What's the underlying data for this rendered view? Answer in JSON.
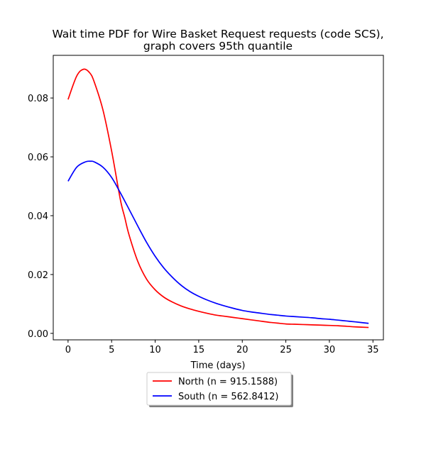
{
  "chart_data": {
    "type": "line",
    "title_line1": "Wait time PDF for Wire Basket Request  requests (code SCS),",
    "title_line2": "graph covers 95th quantile",
    "xlabel": "Time (days)",
    "ylabel": "",
    "xlim": [
      -1.7,
      36.2
    ],
    "ylim": [
      -0.0022,
      0.0945
    ],
    "xticks": [
      0,
      5,
      10,
      15,
      20,
      25,
      30,
      35
    ],
    "xtick_labels": [
      "0",
      "5",
      "10",
      "15",
      "20",
      "25",
      "30",
      "35"
    ],
    "yticks": [
      0.0,
      0.02,
      0.04,
      0.06,
      0.08
    ],
    "ytick_labels": [
      "0.00",
      "0.02",
      "0.04",
      "0.06",
      "0.08"
    ],
    "grid": false,
    "legend_position": "below plot, centered",
    "series": [
      {
        "name": "North (n = 915.1588)",
        "color": "#ff0000",
        "x": [
          0,
          1,
          1.8,
          2.5,
          3,
          4,
          5,
          6,
          6.5,
          7,
          8,
          9,
          10,
          11,
          12,
          13,
          14,
          15,
          16,
          17,
          18,
          19,
          20,
          21,
          22,
          23,
          24,
          25,
          26,
          27,
          28,
          29,
          30,
          31,
          32,
          33,
          34.5
        ],
        "values": [
          0.0795,
          0.0875,
          0.0898,
          0.0885,
          0.0855,
          0.076,
          0.062,
          0.0455,
          0.0395,
          0.0335,
          0.0245,
          0.0185,
          0.0148,
          0.0123,
          0.0106,
          0.0093,
          0.0083,
          0.0075,
          0.0068,
          0.0062,
          0.0058,
          0.0054,
          0.005,
          0.0046,
          0.0042,
          0.0038,
          0.0035,
          0.0032,
          0.0031,
          0.003,
          0.0029,
          0.0028,
          0.0027,
          0.0026,
          0.0024,
          0.0022,
          0.002
        ]
      },
      {
        "name": "South (n = 562.8412)",
        "color": "#0000ff",
        "x": [
          0,
          1,
          2,
          2.6,
          3,
          4,
          5,
          6,
          7,
          8,
          9,
          10,
          11,
          12,
          13,
          14,
          15,
          16,
          17,
          18,
          19,
          20,
          21,
          22,
          23,
          24,
          25,
          26,
          27,
          28,
          29,
          30,
          31,
          32,
          33,
          34.5
        ],
        "values": [
          0.0517,
          0.0565,
          0.0583,
          0.0585,
          0.0583,
          0.0565,
          0.053,
          0.0478,
          0.0422,
          0.0365,
          0.031,
          0.0262,
          0.0222,
          0.019,
          0.0163,
          0.0142,
          0.0126,
          0.0113,
          0.0102,
          0.0093,
          0.0085,
          0.0078,
          0.0073,
          0.0069,
          0.0065,
          0.0062,
          0.0059,
          0.0057,
          0.0055,
          0.0053,
          0.005,
          0.0048,
          0.0045,
          0.0042,
          0.0039,
          0.0034
        ]
      }
    ]
  }
}
